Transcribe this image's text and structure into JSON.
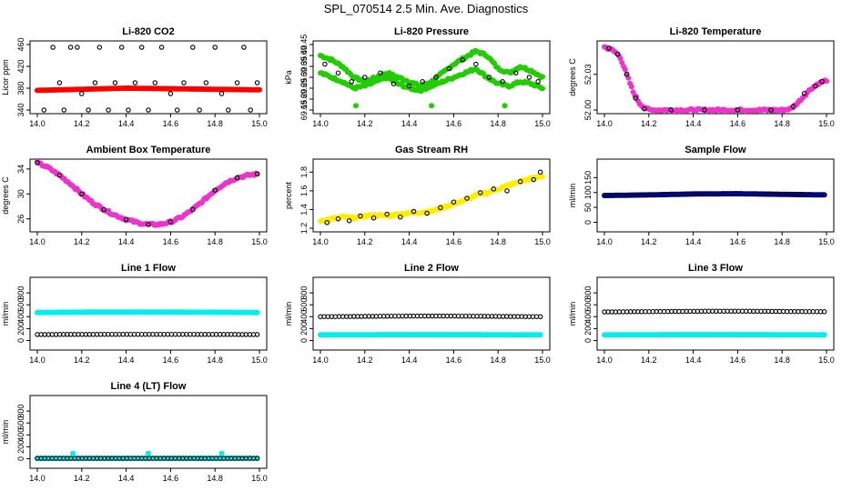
{
  "page": {
    "title": "SPL_070514  2.5 Min. Ave. Diagnostics"
  },
  "chart_data": [
    {
      "type": "scatter",
      "title": "Li-820 CO2",
      "ylabel": "Licor ppm",
      "xlabel": "",
      "xlim": [
        14.0,
        15.0
      ],
      "ylim": [
        340,
        460
      ],
      "xticks": [
        "14.0",
        "14.2",
        "14.4",
        "14.6",
        "14.8",
        "15.0"
      ],
      "yticks": [
        "340",
        "380",
        "420",
        "460"
      ],
      "series": [
        {
          "color": "#ff0000",
          "x_range": [
            14.0,
            15.0
          ],
          "y": [
            376,
            378,
            380,
            379,
            378,
            377
          ]
        },
        {
          "color": "#000000",
          "x": [
            14.03,
            14.07,
            14.1,
            14.12,
            14.15,
            14.18,
            14.2,
            14.23,
            14.26,
            14.28,
            14.32,
            14.35,
            14.38,
            14.41,
            14.44,
            14.47,
            14.5,
            14.53,
            14.56,
            14.6,
            14.63,
            14.66,
            14.7,
            14.73,
            14.76,
            14.8,
            14.83,
            14.86,
            14.9,
            14.93,
            14.96,
            14.99
          ],
          "y": [
            340,
            455,
            390,
            340,
            455,
            455,
            370,
            340,
            390,
            455,
            340,
            390,
            455,
            340,
            390,
            455,
            340,
            390,
            455,
            370,
            340,
            390,
            455,
            340,
            390,
            455,
            370,
            340,
            390,
            455,
            340,
            390
          ]
        }
      ]
    },
    {
      "type": "scatter",
      "title": "Li-820 Pressure",
      "ylabel": "kPa",
      "xlim": [
        14.0,
        15.0
      ],
      "ylim": [
        69.15,
        69.45
      ],
      "xticks": [
        "14.0",
        "14.2",
        "14.4",
        "14.6",
        "14.8",
        "15.0"
      ],
      "yticks": [
        "69.15",
        "69.20",
        "69.25",
        "69.30",
        "69.35",
        "69.40",
        "69.45"
      ],
      "series": [
        {
          "color": "#22cc00",
          "x": [
            14.0,
            14.05,
            14.1,
            14.15,
            14.2,
            14.25,
            14.3,
            14.35,
            14.4,
            14.45,
            14.5,
            14.55,
            14.6,
            14.65,
            14.7,
            14.75,
            14.8,
            14.85,
            14.9,
            14.95,
            15.0
          ],
          "y": [
            69.4,
            69.38,
            69.35,
            69.3,
            69.28,
            69.3,
            69.32,
            69.3,
            69.28,
            69.26,
            69.28,
            69.32,
            69.36,
            69.39,
            69.42,
            69.4,
            69.34,
            69.32,
            69.35,
            69.33,
            69.3
          ]
        },
        {
          "color": "#22cc00",
          "x": [
            14.0,
            14.05,
            14.1,
            14.15,
            14.2,
            14.25,
            14.3,
            14.35,
            14.4,
            14.45,
            14.5,
            14.55,
            14.6,
            14.65,
            14.7,
            14.75,
            14.8,
            14.85,
            14.9,
            14.95,
            15.0
          ],
          "y": [
            69.32,
            69.3,
            69.28,
            69.25,
            69.26,
            69.28,
            69.3,
            69.27,
            69.25,
            69.24,
            69.26,
            69.28,
            69.3,
            69.32,
            69.34,
            69.3,
            69.27,
            69.26,
            69.28,
            69.27,
            69.25
          ]
        },
        {
          "color": "#000000",
          "x": [
            14.02,
            14.08,
            14.14,
            14.2,
            14.27,
            14.33,
            14.4,
            14.46,
            14.52,
            14.58,
            14.64,
            14.7,
            14.76,
            14.82,
            14.88,
            14.94,
            14.98
          ],
          "y": [
            69.36,
            69.32,
            69.28,
            69.3,
            69.32,
            69.27,
            69.26,
            69.28,
            69.3,
            69.34,
            69.38,
            69.36,
            69.3,
            69.28,
            69.32,
            69.3,
            69.28
          ]
        },
        {
          "color": "#22cc00",
          "x": [
            14.16,
            14.5,
            14.83
          ],
          "y": [
            69.17,
            69.17,
            69.17
          ]
        }
      ]
    },
    {
      "type": "scatter",
      "title": "Li-820 Temperature",
      "ylabel": "degrees C",
      "xlim": [
        14.0,
        15.0
      ],
      "ylim": [
        52.0,
        52.055
      ],
      "xticks": [
        "14.0",
        "14.2",
        "14.4",
        "14.6",
        "14.8",
        "15.0"
      ],
      "yticks": [
        "52.00",
        "52.03"
      ],
      "series": [
        {
          "color": "#ee33cc",
          "x": [
            14.0,
            14.04,
            14.07,
            14.1,
            14.13,
            14.16,
            14.2,
            14.3,
            14.4,
            14.5,
            14.6,
            14.7,
            14.8,
            14.84,
            14.87,
            14.9,
            14.93,
            14.96,
            15.0
          ],
          "y": [
            52.053,
            52.05,
            52.045,
            52.03,
            52.015,
            52.005,
            52.0,
            52.0,
            52.0,
            52.0,
            52.0,
            52.0,
            52.0,
            52.001,
            52.006,
            52.012,
            52.018,
            52.022,
            52.025
          ]
        },
        {
          "color": "#000000",
          "x": [
            14.02,
            14.06,
            14.1,
            14.14,
            14.18,
            14.3,
            14.45,
            14.6,
            14.75,
            14.85,
            14.9,
            14.95,
            14.98
          ],
          "y": [
            52.052,
            52.047,
            52.03,
            52.01,
            52.001,
            52.0,
            52.0,
            52.0,
            52.0,
            52.003,
            52.014,
            52.02,
            52.024
          ]
        }
      ]
    },
    {
      "type": "scatter",
      "title": "Ambient Box Temperature",
      "ylabel": "degrees C",
      "xlim": [
        14.0,
        15.0
      ],
      "ylim": [
        24.5,
        35
      ],
      "xticks": [
        "14.0",
        "14.2",
        "14.4",
        "14.6",
        "14.8",
        "15.0"
      ],
      "yticks": [
        "26",
        "30",
        "34"
      ],
      "series": [
        {
          "color": "#ee33cc",
          "x": [
            14.0,
            14.05,
            14.1,
            14.15,
            14.2,
            14.25,
            14.3,
            14.35,
            14.4,
            14.45,
            14.5,
            14.55,
            14.6,
            14.65,
            14.7,
            14.75,
            14.8,
            14.85,
            14.9,
            14.95,
            14.99
          ],
          "y": [
            35.0,
            34.2,
            33.0,
            31.6,
            30.0,
            28.6,
            27.5,
            26.6,
            25.9,
            25.4,
            25.1,
            25.1,
            25.5,
            26.3,
            27.5,
            29.0,
            30.6,
            31.8,
            32.6,
            33.0,
            33.2
          ]
        },
        {
          "color": "#000000",
          "x": [
            14.0,
            14.1,
            14.2,
            14.3,
            14.4,
            14.5,
            14.6,
            14.7,
            14.8,
            14.9,
            14.99
          ],
          "y": [
            35.0,
            33.0,
            30.0,
            27.5,
            25.9,
            25.1,
            25.5,
            27.5,
            30.6,
            32.6,
            33.2
          ]
        }
      ]
    },
    {
      "type": "scatter",
      "title": "Gas Stream RH",
      "ylabel": "percent",
      "xlim": [
        14.0,
        15.0
      ],
      "ylim": [
        1.2,
        1.9
      ],
      "xticks": [
        "14.0",
        "14.2",
        "14.4",
        "14.6",
        "14.8",
        "15.0"
      ],
      "yticks": [
        "1.2",
        "1.4",
        "1.6",
        "1.8"
      ],
      "series": [
        {
          "color": "#ffee00",
          "x": [
            14.0,
            14.05,
            14.1,
            14.15,
            14.2,
            14.25,
            14.3,
            14.35,
            14.4,
            14.45,
            14.5,
            14.55,
            14.6,
            14.65,
            14.7,
            14.75,
            14.8,
            14.85,
            14.9,
            14.95,
            15.0
          ],
          "y": [
            1.28,
            1.3,
            1.32,
            1.31,
            1.33,
            1.34,
            1.33,
            1.35,
            1.36,
            1.37,
            1.38,
            1.42,
            1.46,
            1.5,
            1.55,
            1.58,
            1.62,
            1.66,
            1.7,
            1.73,
            1.76
          ]
        },
        {
          "color": "#000000",
          "x": [
            14.03,
            14.08,
            14.13,
            14.18,
            14.24,
            14.3,
            14.36,
            14.42,
            14.48,
            14.54,
            14.6,
            14.66,
            14.72,
            14.78,
            14.84,
            14.9,
            14.96,
            14.99
          ],
          "y": [
            1.26,
            1.3,
            1.28,
            1.33,
            1.31,
            1.35,
            1.32,
            1.38,
            1.36,
            1.42,
            1.48,
            1.52,
            1.58,
            1.62,
            1.6,
            1.7,
            1.72,
            1.8
          ]
        }
      ]
    },
    {
      "type": "scatter",
      "title": "Sample Flow",
      "ylabel": "ml/min",
      "xlim": [
        14.0,
        15.0
      ],
      "ylim": [
        -20,
        200
      ],
      "xticks": [
        "14.0",
        "14.2",
        "14.4",
        "14.6",
        "14.8",
        "15.0"
      ],
      "yticks": [
        "0",
        "50",
        "100",
        "150"
      ],
      "series": [
        {
          "color": "#0000cc",
          "x_range": [
            14.0,
            14.99
          ],
          "y": [
            90,
            92,
            95,
            96,
            94,
            92
          ]
        },
        {
          "color": "#000000",
          "x_range": [
            14.0,
            14.99
          ],
          "y": [
            90,
            92,
            95,
            96,
            94,
            92
          ]
        }
      ]
    },
    {
      "type": "scatter",
      "title": "Line 1 Flow",
      "ylabel": "ml/min",
      "xlim": [
        14.0,
        15.0
      ],
      "ylim": [
        -100,
        1000
      ],
      "xticks": [
        "14.0",
        "14.2",
        "14.4",
        "14.6",
        "14.8",
        "15.0"
      ],
      "yticks": [
        "0",
        "200",
        "400",
        "600",
        "800"
      ],
      "series": [
        {
          "color": "#00eeee",
          "x_range": [
            14.0,
            14.99
          ],
          "y": [
            470,
            475,
            478,
            476,
            474,
            470
          ]
        },
        {
          "color": "#000000",
          "x_range": [
            14.0,
            14.99
          ],
          "y": [
            100,
            102,
            103,
            103,
            102,
            100
          ]
        }
      ]
    },
    {
      "type": "scatter",
      "title": "Line 2 Flow",
      "ylabel": "ml/min",
      "xlim": [
        14.0,
        15.0
      ],
      "ylim": [
        -100,
        1000
      ],
      "xticks": [
        "14.0",
        "14.2",
        "14.4",
        "14.6",
        "14.8",
        "15.0"
      ],
      "yticks": [
        "0",
        "200",
        "400",
        "600",
        "800"
      ],
      "series": [
        {
          "color": "#00eeee",
          "x_range": [
            14.0,
            14.99
          ],
          "y": [
            95,
            96,
            97,
            97,
            96,
            95
          ]
        },
        {
          "color": "#000000",
          "x_range": [
            14.0,
            14.99
          ],
          "y": [
            400,
            405,
            410,
            410,
            405,
            400
          ]
        }
      ]
    },
    {
      "type": "scatter",
      "title": "Line 3 Flow",
      "ylabel": "ml/min",
      "xlim": [
        14.0,
        15.0
      ],
      "ylim": [
        -100,
        1000
      ],
      "xticks": [
        "14.0",
        "14.2",
        "14.4",
        "14.6",
        "14.8",
        "15.0"
      ],
      "yticks": [
        "0",
        "200",
        "400",
        "600",
        "800"
      ],
      "series": [
        {
          "color": "#00eeee",
          "x_range": [
            14.0,
            14.99
          ],
          "y": [
            95,
            96,
            97,
            97,
            96,
            95
          ]
        },
        {
          "color": "#000000",
          "x_range": [
            14.0,
            14.99
          ],
          "y": [
            480,
            485,
            490,
            492,
            488,
            484
          ]
        }
      ]
    },
    {
      "type": "scatter",
      "title": "Line 4 (LT) Flow",
      "ylabel": "ml/min",
      "xlim": [
        14.0,
        15.0
      ],
      "ylim": [
        -100,
        1000
      ],
      "xticks": [
        "14.0",
        "14.2",
        "14.4",
        "14.6",
        "14.8",
        "15.0"
      ],
      "yticks": [
        "0",
        "200",
        "400",
        "600",
        "800"
      ],
      "series": [
        {
          "color": "#00eeee",
          "x_range": [
            14.0,
            14.99
          ],
          "y": [
            5,
            5,
            5,
            5,
            5,
            5
          ]
        },
        {
          "color": "#000000",
          "x_range": [
            14.0,
            14.99
          ],
          "y": [
            5,
            5,
            5,
            5,
            5,
            5
          ]
        },
        {
          "color": "#00eeee",
          "x": [
            14.16,
            14.5,
            14.83
          ],
          "y": [
            90,
            90,
            90
          ]
        }
      ]
    }
  ]
}
